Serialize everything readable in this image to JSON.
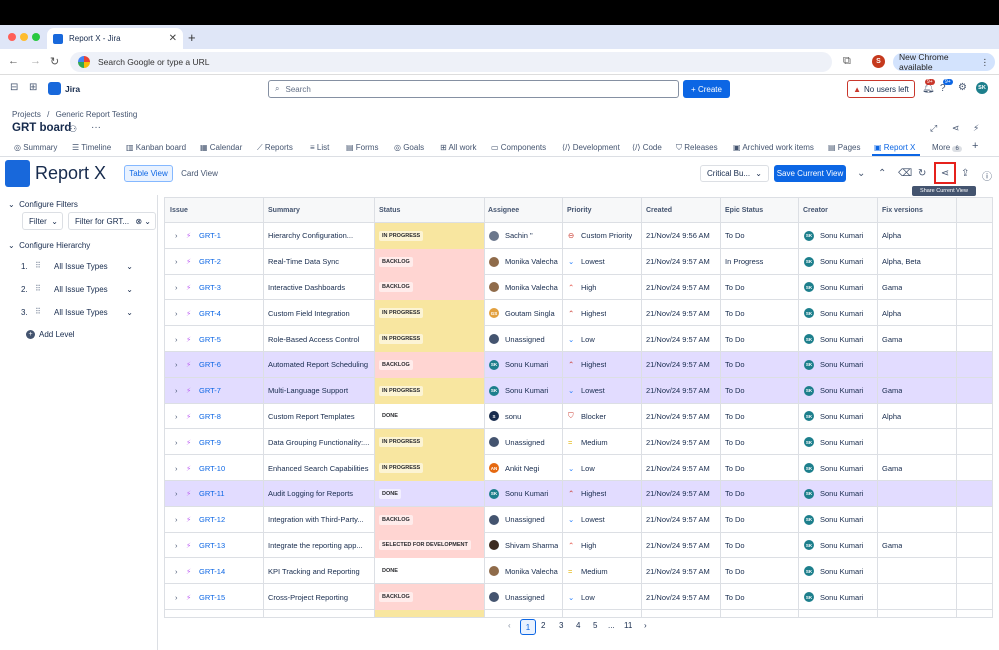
{
  "browser": {
    "tab_title": "Report X - Jira",
    "address": "Search Google or type a URL",
    "new_chrome": "New Chrome available",
    "profile_initial": "S"
  },
  "jira": {
    "app_name": "Jira",
    "search_placeholder": "Search",
    "create_label": "Create",
    "no_users_label": "No users left",
    "notif_badge": "9+",
    "help_badge": "9+",
    "user_initials": "SK"
  },
  "breadcrumb": {
    "projects": "Projects",
    "sep": "/",
    "project": "Generic Report Testing"
  },
  "page_title": "GRT board",
  "project_tabs": [
    "Summary",
    "Timeline",
    "Kanban board",
    "Calendar",
    "Reports",
    "List",
    "Forms",
    "Goals",
    "All work",
    "Components",
    "Development",
    "Code",
    "Releases",
    "Archived work items",
    "Pages",
    "Report X",
    "More"
  ],
  "more_count": "6",
  "report": {
    "title": "Report X",
    "table_view": "Table View",
    "card_view": "Card View",
    "critical_label": "Critical Bu...",
    "save_view": "Save Current View",
    "tooltip": "Share Current View"
  },
  "sidebar": {
    "configure_filters": "Configure Filters",
    "filter_label": "Filter",
    "filter_value": "Filter for GRT...",
    "configure_hierarchy": "Configure Hierarchy",
    "levels": [
      {
        "num": "1.",
        "value": "All Issue Types"
      },
      {
        "num": "2.",
        "value": "All Issue Types"
      },
      {
        "num": "3.",
        "value": "All Issue Types"
      }
    ],
    "add_level": "Add Level"
  },
  "columns": [
    "Issue",
    "Summary",
    "Status",
    "Assignee",
    "Priority",
    "Created",
    "Epic Status",
    "Creator",
    "Fix versions"
  ],
  "rows": [
    {
      "key": "GRT-1",
      "summary": "Hierarchy Configuration...",
      "status": "IN PROGRESS",
      "assignee": "Sachin \"",
      "priority": "Custom Priority",
      "created": "21/Nov/24 9:56 AM",
      "epic": "To Do",
      "creator": "Sonu Kumari",
      "fix": "Alpha"
    },
    {
      "key": "GRT-2",
      "summary": "Real-Time Data Sync",
      "status": "BACKLOG",
      "assignee": "Monika Valecha",
      "priority": "Lowest",
      "created": "21/Nov/24 9:57 AM",
      "epic": "In Progress",
      "creator": "Sonu Kumari",
      "fix": "Alpha, Beta"
    },
    {
      "key": "GRT-3",
      "summary": "Interactive Dashboards",
      "status": "BACKLOG",
      "assignee": "Monika Valecha",
      "priority": "High",
      "created": "21/Nov/24 9:57 AM",
      "epic": "To Do",
      "creator": "Sonu Kumari",
      "fix": "Gama"
    },
    {
      "key": "GRT-4",
      "summary": "Custom Field Integration",
      "status": "IN PROGRESS",
      "assignee": "Goutam Singla",
      "priority": "Highest",
      "created": "21/Nov/24 9:57 AM",
      "epic": "To Do",
      "creator": "Sonu Kumari",
      "fix": "Alpha"
    },
    {
      "key": "GRT-5",
      "summary": "Role-Based Access Control",
      "status": "IN PROGRESS",
      "assignee": "Unassigned",
      "priority": "Low",
      "created": "21/Nov/24 9:57 AM",
      "epic": "To Do",
      "creator": "Sonu Kumari",
      "fix": "Gama"
    },
    {
      "key": "GRT-6",
      "summary": "Automated Report Scheduling",
      "status": "BACKLOG",
      "assignee": "Sonu Kumari",
      "priority": "Highest",
      "created": "21/Nov/24 9:57 AM",
      "epic": "To Do",
      "creator": "Sonu Kumari",
      "fix": ""
    },
    {
      "key": "GRT-7",
      "summary": "Multi-Language Support",
      "status": "IN PROGRESS",
      "assignee": "Sonu Kumari",
      "priority": "Lowest",
      "created": "21/Nov/24 9:57 AM",
      "epic": "To Do",
      "creator": "Sonu Kumari",
      "fix": "Gama"
    },
    {
      "key": "GRT-8",
      "summary": "Custom Report Templates",
      "status": "DONE",
      "assignee": "sonu",
      "priority": "Blocker",
      "created": "21/Nov/24 9:57 AM",
      "epic": "To Do",
      "creator": "Sonu Kumari",
      "fix": "Alpha"
    },
    {
      "key": "GRT-9",
      "summary": "Data Grouping Functionality:...",
      "status": "IN PROGRESS",
      "assignee": "Unassigned",
      "priority": "Medium",
      "created": "21/Nov/24 9:57 AM",
      "epic": "To Do",
      "creator": "Sonu Kumari",
      "fix": ""
    },
    {
      "key": "GRT-10",
      "summary": "Enhanced Search Capabilities",
      "status": "IN PROGRESS",
      "assignee": "Ankit Negi",
      "priority": "Low",
      "created": "21/Nov/24 9:57 AM",
      "epic": "To Do",
      "creator": "Sonu Kumari",
      "fix": "Gama"
    },
    {
      "key": "GRT-11",
      "summary": "Audit Logging for Reports",
      "status": "DONE",
      "assignee": "Sonu Kumari",
      "priority": "Highest",
      "created": "21/Nov/24 9:57 AM",
      "epic": "To Do",
      "creator": "Sonu Kumari",
      "fix": ""
    },
    {
      "key": "GRT-12",
      "summary": "Integration with Third-Party...",
      "status": "BACKLOG",
      "assignee": "Unassigned",
      "priority": "Lowest",
      "created": "21/Nov/24 9:57 AM",
      "epic": "To Do",
      "creator": "Sonu Kumari",
      "fix": ""
    },
    {
      "key": "GRT-13",
      "summary": "Integrate the reporting app...",
      "status": "SELECTED FOR DEVELOPMENT",
      "assignee": "Shivam Sharma",
      "priority": "High",
      "created": "21/Nov/24 9:57 AM",
      "epic": "To Do",
      "creator": "Sonu Kumari",
      "fix": "Gama"
    },
    {
      "key": "GRT-14",
      "summary": "KPI Tracking and Reporting",
      "status": "DONE",
      "assignee": "Monika Valecha",
      "priority": "Medium",
      "created": "21/Nov/24 9:57 AM",
      "epic": "To Do",
      "creator": "Sonu Kumari",
      "fix": ""
    },
    {
      "key": "GRT-15",
      "summary": "Cross-Project Reporting",
      "status": "BACKLOG",
      "assignee": "Unassigned",
      "priority": "Low",
      "created": "21/Nov/24 9:57 AM",
      "epic": "To Do",
      "creator": "Sonu Kumari",
      "fix": ""
    }
  ],
  "pagination": {
    "prev": "‹",
    "pages": [
      "1",
      "2",
      "3",
      "4",
      "5"
    ],
    "ellipsis": "...",
    "last": "11",
    "next": "›"
  },
  "colors": {
    "accent": "#0c66e4",
    "in_progress": "#f8e6a0",
    "backlog": "#ffd5d2",
    "done": "#ffffff",
    "selected_dev": "#ffd5d2",
    "highlight": "#e2dcff",
    "share_border": "#e5211c"
  }
}
